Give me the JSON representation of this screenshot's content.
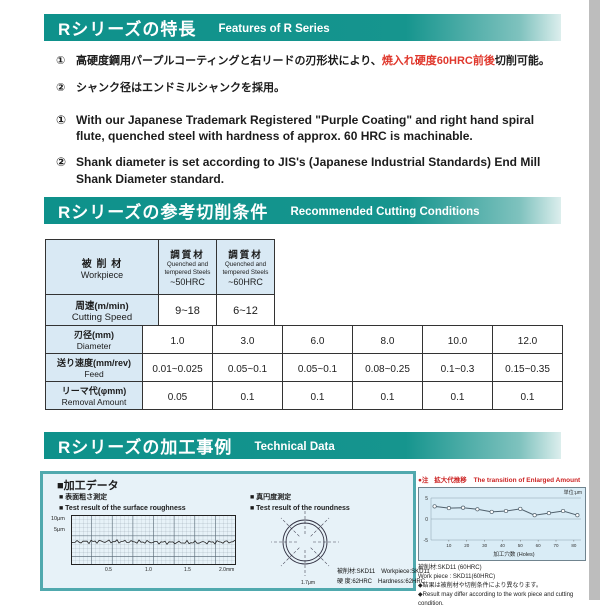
{
  "colors": {
    "teal": "#16958e",
    "red": "#e0382d",
    "table_header_bg": "#d9e9f4",
    "box_border": "#50a9ae",
    "box_bg": "#e7f2f8",
    "chart_bg": "#d9ecf6"
  },
  "features": {
    "header": {
      "jp": "Rシリーズの特長",
      "en": "Features of R Series"
    },
    "jp_items": [
      {
        "num": "①",
        "pre": "高硬度鋼用パープルコーティングと右リードの刃形状により、",
        "red": "焼入れ硬度60HRC前後",
        "post": "切削可能。"
      },
      {
        "num": "②",
        "pre": "シャンク径はエンドミルシャンクを採用。",
        "red": "",
        "post": ""
      }
    ],
    "en_items": [
      {
        "num": "①",
        "text": "With our Japanese Trademark Registered \"Purple Coating\" and right hand spiral flute, quenched steel with hardness of approx. 60 HRC is machinable."
      },
      {
        "num": "②",
        "text": "Shank diameter is set according to JIS's (Japanese Industrial Standards) End Mill Shank Diameter standard."
      }
    ]
  },
  "cutting_conditions": {
    "header": {
      "jp": "Rシリーズの参考切削条件",
      "en": "Recommended Cutting Conditions"
    },
    "workpiece_table": {
      "col0": {
        "jp": "被 削 材",
        "en": "Workpiece"
      },
      "col1": {
        "jp": "調質材",
        "en": "Quenched and tempered Steels",
        "hrc": "~50HRC"
      },
      "col2": {
        "jp": "調質材",
        "en": "Quenched and tempered Steels",
        "hrc": "~60HRC"
      },
      "row": {
        "jp": "周速(m/min)",
        "en": "Cutting Speed",
        "v1": "9~18",
        "v2": "6~12"
      }
    },
    "feed_table": {
      "rows": [
        {
          "jp": "刃径(mm)",
          "en": "Diameter",
          "values": [
            "1.0",
            "3.0",
            "6.0",
            "8.0",
            "10.0",
            "12.0"
          ]
        },
        {
          "jp": "送り速度(mm/rev)",
          "en": "Feed",
          "values": [
            "0.01~0.025",
            "0.05~0.1",
            "0.05~0.1",
            "0.08~0.25",
            "0.1~0.3",
            "0.15~0.35"
          ]
        },
        {
          "jp": "リーマ代(φmm)",
          "en": "Removal Amount",
          "values": [
            "0.05",
            "0.1",
            "0.1",
            "0.1",
            "0.1",
            "0.1"
          ]
        }
      ]
    }
  },
  "technical": {
    "header": {
      "jp": "Rシリーズの加工事例",
      "en": "Technical Data"
    },
    "left_box": {
      "title": "■加工データ",
      "roughness": {
        "jp": "■ 表面粗さ測定",
        "en": "■ Test result of the surface roughness",
        "y_labels": [
          "10μm",
          "5μm"
        ],
        "x_labels": [
          "0.5",
          "1.0",
          "1.5",
          "2.0mm"
        ]
      },
      "roundness": {
        "jp": "■ 真円度測定",
        "en": "■ Test result of the roundness",
        "scale": "1.7μm"
      },
      "workpiece_line1": "被削材:SKD11　Workpiece:SKD11",
      "workpiece_line2": "硬 度:62HRC　Hardness:62HRC"
    },
    "note": {
      "mark": "●注",
      "jp": "拡大代推移",
      "en": "The transition of Enlarged Amount"
    },
    "unit_label": "単位:μm",
    "footnotes": [
      "被削材:SKD11 (60HRC)",
      "Work piece : SKD11(60HRC)",
      "◆結果は被削材や切削条件により異なります。",
      "◆Result may differ according to the work piece and cutting condition."
    ]
  },
  "chart_data": {
    "type": "line",
    "title": "拡大代推移 The transition of Enlarged Amount",
    "ylabel": "単位:μm",
    "xlabel": "加工穴数 (Holes)",
    "x_ticks": [
      10,
      20,
      30,
      40,
      50,
      60,
      70,
      80
    ],
    "y_ticks": [
      5,
      0,
      -5
    ],
    "ylim": [
      -5,
      5
    ],
    "x": [
      2,
      10,
      18,
      26,
      34,
      42,
      50,
      58,
      66,
      74,
      82
    ],
    "y": [
      3.0,
      2.6,
      2.7,
      2.3,
      1.7,
      1.9,
      2.4,
      0.9,
      1.4,
      1.9,
      0.9
    ],
    "legend": null,
    "grid": true
  }
}
